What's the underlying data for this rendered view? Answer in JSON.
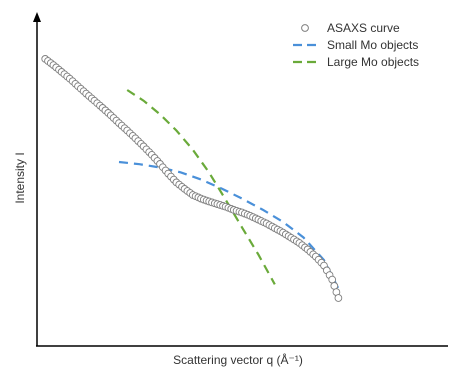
{
  "chart_data": {
    "type": "scatter",
    "title": "",
    "xlabel": "Scattering vector q (Å⁻¹)",
    "ylabel": "Intensity I",
    "x_ticks": "none",
    "y_ticks": "none",
    "grid": false,
    "legend_position": "top-right",
    "series": [
      {
        "name": "ASAXS curve",
        "style": "open-circle",
        "color": "#7f7f7f",
        "points": [
          [
            0.02,
            0.886
          ],
          [
            0.04,
            0.867
          ],
          [
            0.06,
            0.846
          ],
          [
            0.08,
            0.825
          ],
          [
            0.1,
            0.802
          ],
          [
            0.12,
            0.779
          ],
          [
            0.14,
            0.757
          ],
          [
            0.16,
            0.735
          ],
          [
            0.18,
            0.712
          ],
          [
            0.2,
            0.688
          ],
          [
            0.22,
            0.665
          ],
          [
            0.24,
            0.641
          ],
          [
            0.26,
            0.616
          ],
          [
            0.28,
            0.59
          ],
          [
            0.3,
            0.562
          ],
          [
            0.32,
            0.532
          ],
          [
            0.34,
            0.505
          ],
          [
            0.36,
            0.485
          ],
          [
            0.38,
            0.466
          ],
          [
            0.4,
            0.455
          ],
          [
            0.42,
            0.446
          ],
          [
            0.44,
            0.438
          ],
          [
            0.46,
            0.43
          ],
          [
            0.48,
            0.42
          ],
          [
            0.5,
            0.412
          ],
          [
            0.52,
            0.402
          ],
          [
            0.54,
            0.39
          ],
          [
            0.56,
            0.378
          ],
          [
            0.58,
            0.364
          ],
          [
            0.6,
            0.35
          ],
          [
            0.62,
            0.334
          ],
          [
            0.64,
            0.318
          ],
          [
            0.66,
            0.298
          ],
          [
            0.68,
            0.276
          ],
          [
            0.7,
            0.248
          ],
          [
            0.72,
            0.205
          ],
          [
            0.735,
            0.148
          ]
        ]
      },
      {
        "name": "Small Mo objects",
        "style": "dashed",
        "color": "#4a90d9",
        "points": [
          [
            0.2,
            0.568
          ],
          [
            0.25,
            0.561
          ],
          [
            0.3,
            0.551
          ],
          [
            0.35,
            0.536
          ],
          [
            0.4,
            0.514
          ],
          [
            0.45,
            0.486
          ],
          [
            0.5,
            0.455
          ],
          [
            0.55,
            0.421
          ],
          [
            0.6,
            0.383
          ],
          [
            0.65,
            0.335
          ],
          [
            0.7,
            0.265
          ],
          [
            0.74,
            0.165
          ]
        ]
      },
      {
        "name": "Large Mo objects",
        "style": "dashed",
        "color": "#6aaa3a",
        "points": [
          [
            0.22,
            0.79
          ],
          [
            0.26,
            0.757
          ],
          [
            0.3,
            0.715
          ],
          [
            0.34,
            0.665
          ],
          [
            0.38,
            0.606
          ],
          [
            0.42,
            0.535
          ],
          [
            0.46,
            0.452
          ],
          [
            0.5,
            0.366
          ],
          [
            0.54,
            0.282
          ],
          [
            0.58,
            0.19
          ]
        ]
      }
    ]
  }
}
